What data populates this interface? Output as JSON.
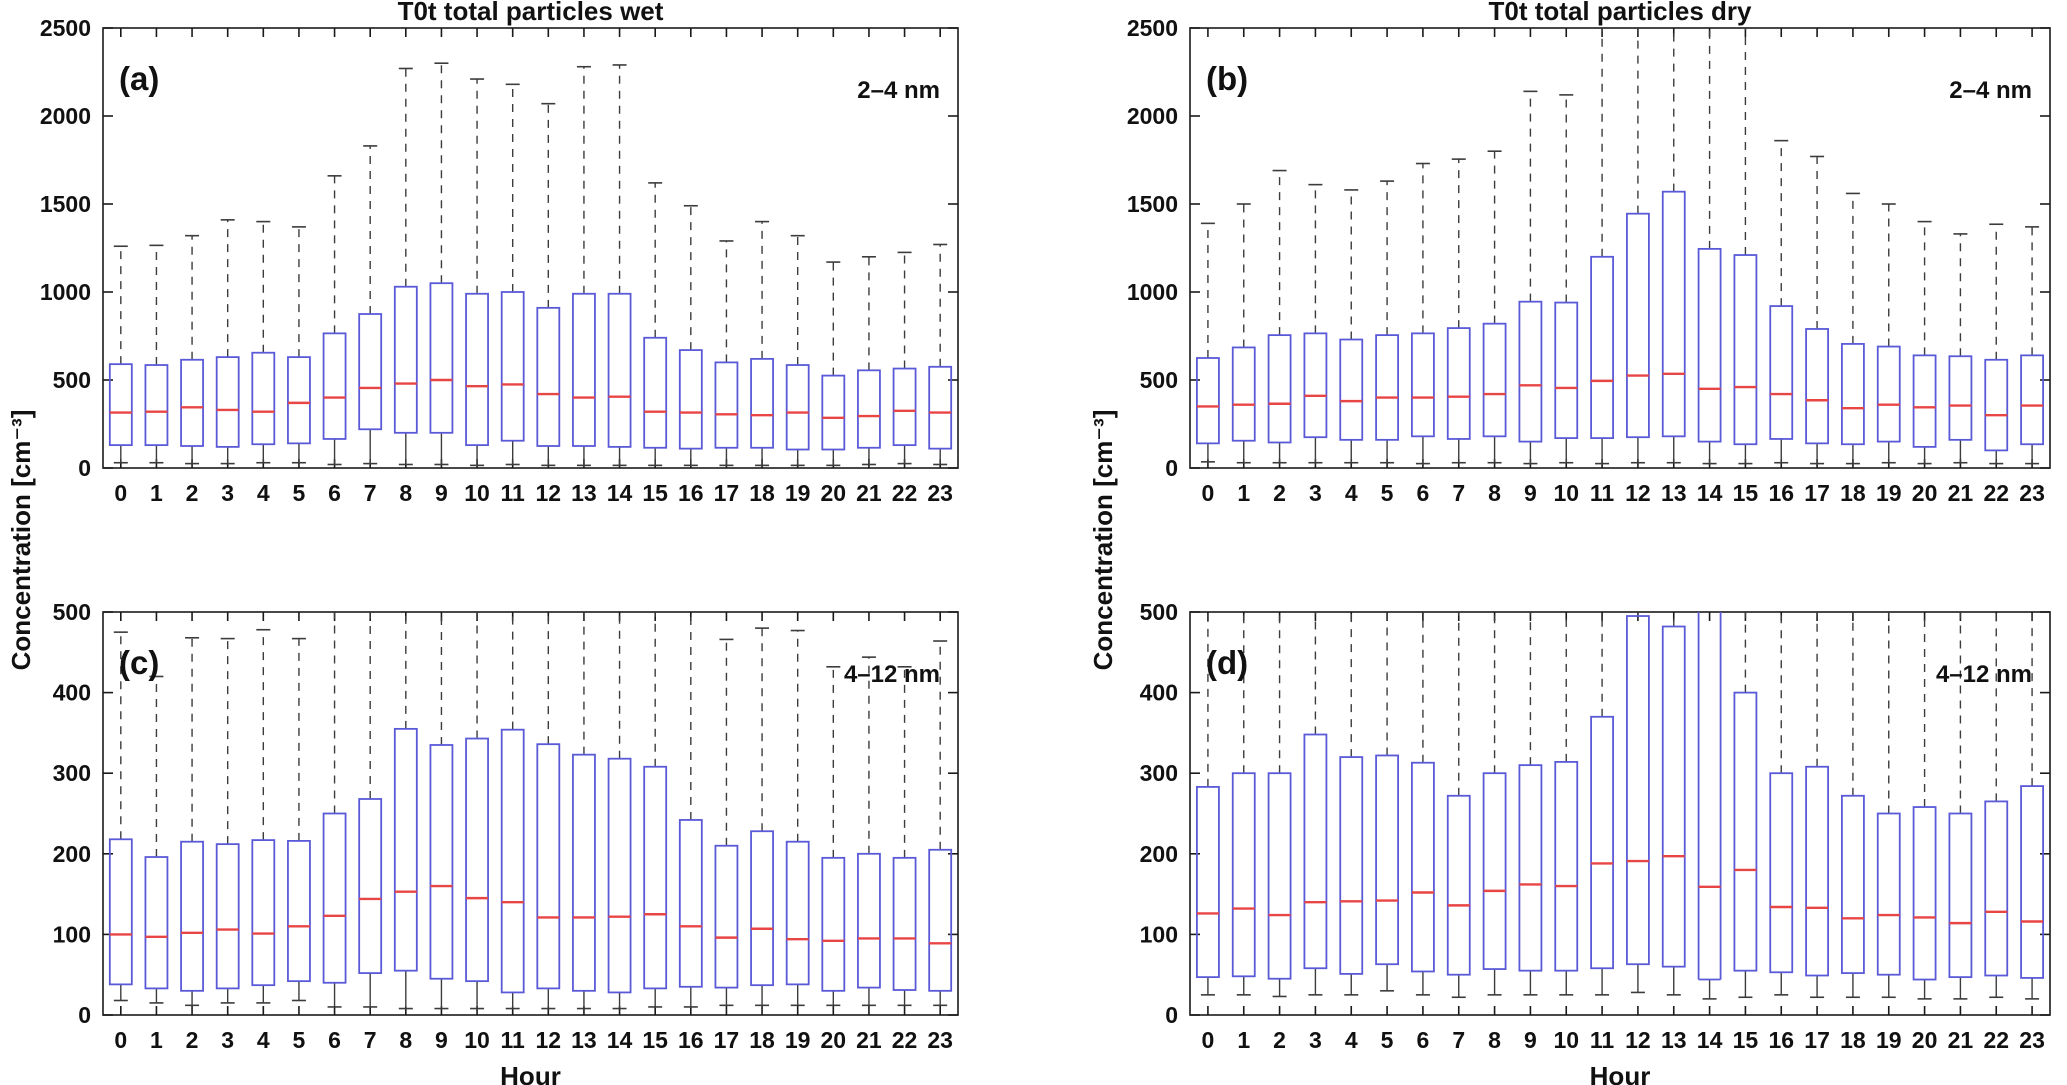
{
  "figure": {
    "ylabel": "Concentration [cm⁻³]",
    "xlabel": "Hour",
    "background": "#ffffff"
  },
  "colors": {
    "box": "#5a5ad8",
    "median": "#e84545",
    "whisker": "#3c3c3c",
    "frame": "#1a1a1a",
    "text": "#111111"
  },
  "hours": [
    "0",
    "1",
    "2",
    "3",
    "4",
    "5",
    "6",
    "7",
    "8",
    "9",
    "10",
    "11",
    "12",
    "13",
    "14",
    "15",
    "16",
    "17",
    "18",
    "19",
    "20",
    "21",
    "22",
    "23"
  ],
  "chart_data": [
    {
      "id": "a",
      "type": "boxplot",
      "title": "T0t total particles wet",
      "panel_label": "(a)",
      "annotation": "2–4 nm",
      "ylim": [
        0,
        2500
      ],
      "yticks": [
        "0",
        "500",
        "1000",
        "1500",
        "2000",
        "2500"
      ],
      "xlabel": "",
      "box_stats_order": [
        "whisker_low",
        "q1",
        "median",
        "q3",
        "whisker_high"
      ],
      "clipped_whisker_hours": [],
      "boxes": [
        [
          30,
          130,
          315,
          590,
          1260
        ],
        [
          30,
          130,
          320,
          585,
          1265
        ],
        [
          25,
          125,
          345,
          615,
          1320
        ],
        [
          25,
          120,
          330,
          630,
          1410
        ],
        [
          30,
          135,
          320,
          655,
          1400
        ],
        [
          30,
          140,
          370,
          630,
          1370
        ],
        [
          20,
          165,
          400,
          765,
          1660
        ],
        [
          25,
          220,
          455,
          875,
          1830
        ],
        [
          20,
          200,
          480,
          1030,
          2270
        ],
        [
          20,
          200,
          500,
          1050,
          2300
        ],
        [
          15,
          130,
          465,
          990,
          2210
        ],
        [
          20,
          155,
          475,
          1000,
          2180
        ],
        [
          15,
          125,
          420,
          910,
          2070
        ],
        [
          15,
          125,
          400,
          990,
          2280
        ],
        [
          15,
          120,
          405,
          990,
          2290
        ],
        [
          15,
          115,
          320,
          740,
          1620
        ],
        [
          15,
          110,
          315,
          670,
          1490
        ],
        [
          15,
          115,
          305,
          600,
          1290
        ],
        [
          15,
          115,
          300,
          620,
          1400
        ],
        [
          15,
          105,
          315,
          585,
          1320
        ],
        [
          15,
          105,
          285,
          525,
          1170
        ],
        [
          20,
          115,
          295,
          555,
          1200
        ],
        [
          25,
          130,
          325,
          565,
          1225
        ],
        [
          20,
          110,
          315,
          575,
          1270
        ]
      ]
    },
    {
      "id": "b",
      "type": "boxplot",
      "title": "T0t total particles dry",
      "panel_label": "(b)",
      "annotation": "2–4 nm",
      "ylim": [
        0,
        2500
      ],
      "yticks": [
        "0",
        "500",
        "1000",
        "1500",
        "2000",
        "2500"
      ],
      "xlabel": "",
      "box_stats_order": [
        "whisker_low",
        "q1",
        "median",
        "q3",
        "whisker_high"
      ],
      "clipped_whisker_hours": [
        11,
        12,
        13,
        14,
        15
      ],
      "boxes": [
        [
          35,
          140,
          350,
          625,
          1390
        ],
        [
          30,
          155,
          360,
          685,
          1500
        ],
        [
          30,
          145,
          365,
          755,
          1690
        ],
        [
          30,
          175,
          410,
          765,
          1610
        ],
        [
          30,
          160,
          380,
          730,
          1580
        ],
        [
          30,
          160,
          400,
          755,
          1630
        ],
        [
          25,
          180,
          400,
          765,
          1730
        ],
        [
          30,
          165,
          405,
          795,
          1755
        ],
        [
          30,
          180,
          420,
          820,
          1800
        ],
        [
          25,
          150,
          470,
          945,
          2140
        ],
        [
          30,
          170,
          455,
          940,
          2120
        ],
        [
          25,
          170,
          495,
          1200,
          2600
        ],
        [
          30,
          175,
          525,
          1445,
          2600
        ],
        [
          30,
          180,
          535,
          1570,
          2600
        ],
        [
          25,
          150,
          450,
          1245,
          2600
        ],
        [
          25,
          135,
          460,
          1210,
          2600
        ],
        [
          30,
          165,
          420,
          920,
          1860
        ],
        [
          25,
          140,
          385,
          790,
          1770
        ],
        [
          25,
          135,
          340,
          705,
          1560
        ],
        [
          30,
          150,
          360,
          690,
          1500
        ],
        [
          25,
          120,
          345,
          640,
          1400
        ],
        [
          30,
          160,
          355,
          635,
          1330
        ],
        [
          25,
          100,
          300,
          615,
          1385
        ],
        [
          25,
          135,
          355,
          640,
          1370
        ]
      ]
    },
    {
      "id": "c",
      "type": "boxplot",
      "title": "",
      "panel_label": "(c)",
      "annotation": "4–12 nm",
      "ylim": [
        0,
        500
      ],
      "yticks": [
        "0",
        "100",
        "200",
        "300",
        "400",
        "500"
      ],
      "xlabel": "Hour",
      "box_stats_order": [
        "whisker_low",
        "q1",
        "median",
        "q3",
        "whisker_high"
      ],
      "clipped_whisker_hours": [
        6,
        7,
        8,
        9,
        10,
        11,
        12,
        13,
        14,
        15,
        16
      ],
      "boxes": [
        [
          18,
          38,
          100,
          218,
          475
        ],
        [
          15,
          33,
          97,
          196,
          420
        ],
        [
          12,
          30,
          102,
          215,
          468
        ],
        [
          15,
          33,
          106,
          212,
          467
        ],
        [
          15,
          37,
          101,
          217,
          478
        ],
        [
          18,
          42,
          110,
          216,
          467
        ],
        [
          10,
          40,
          123,
          250,
          530
        ],
        [
          10,
          52,
          144,
          268,
          530
        ],
        [
          8,
          55,
          153,
          355,
          530
        ],
        [
          8,
          45,
          160,
          335,
          530
        ],
        [
          8,
          42,
          145,
          343,
          530
        ],
        [
          8,
          28,
          140,
          354,
          530
        ],
        [
          8,
          33,
          121,
          336,
          530
        ],
        [
          8,
          30,
          121,
          323,
          530
        ],
        [
          8,
          28,
          122,
          318,
          530
        ],
        [
          10,
          33,
          125,
          308,
          530
        ],
        [
          10,
          35,
          110,
          242,
          530
        ],
        [
          12,
          34,
          96,
          210,
          466
        ],
        [
          12,
          37,
          107,
          228,
          480
        ],
        [
          12,
          38,
          94,
          215,
          477
        ],
        [
          12,
          30,
          92,
          195,
          432
        ],
        [
          12,
          34,
          95,
          200,
          444
        ],
        [
          12,
          31,
          95,
          195,
          432
        ],
        [
          12,
          30,
          89,
          205,
          464
        ]
      ]
    },
    {
      "id": "d",
      "type": "boxplot",
      "title": "",
      "panel_label": "(d)",
      "annotation": "4–12 nm",
      "ylim": [
        0,
        500
      ],
      "yticks": [
        "0",
        "100",
        "200",
        "300",
        "400",
        "500"
      ],
      "xlabel": "Hour",
      "box_stats_order": [
        "whisker_low",
        "q1",
        "median",
        "q3",
        "whisker_high"
      ],
      "clipped_whisker_hours": [
        0,
        1,
        2,
        3,
        4,
        5,
        6,
        7,
        8,
        9,
        10,
        11,
        12,
        13,
        14,
        15,
        16,
        17,
        18,
        19,
        20,
        21,
        22,
        23
      ],
      "boxes": [
        [
          25,
          47,
          126,
          283,
          530
        ],
        [
          25,
          48,
          132,
          300,
          530
        ],
        [
          23,
          45,
          124,
          300,
          530
        ],
        [
          25,
          58,
          140,
          348,
          530
        ],
        [
          25,
          51,
          141,
          320,
          530
        ],
        [
          30,
          63,
          142,
          322,
          530
        ],
        [
          25,
          54,
          152,
          313,
          530
        ],
        [
          22,
          50,
          136,
          272,
          530
        ],
        [
          25,
          57,
          154,
          300,
          530
        ],
        [
          25,
          55,
          162,
          310,
          530
        ],
        [
          25,
          55,
          160,
          314,
          530
        ],
        [
          25,
          58,
          188,
          370,
          530
        ],
        [
          28,
          63,
          191,
          495,
          530
        ],
        [
          25,
          60,
          197,
          482,
          530
        ],
        [
          20,
          44,
          159,
          530,
          540
        ],
        [
          22,
          55,
          180,
          400,
          530
        ],
        [
          25,
          53,
          134,
          300,
          530
        ],
        [
          22,
          49,
          133,
          308,
          530
        ],
        [
          22,
          52,
          120,
          272,
          530
        ],
        [
          22,
          50,
          124,
          250,
          530
        ],
        [
          20,
          44,
          121,
          258,
          530
        ],
        [
          20,
          47,
          114,
          250,
          530
        ],
        [
          22,
          49,
          128,
          265,
          530
        ],
        [
          20,
          46,
          116,
          284,
          530
        ]
      ]
    }
  ]
}
